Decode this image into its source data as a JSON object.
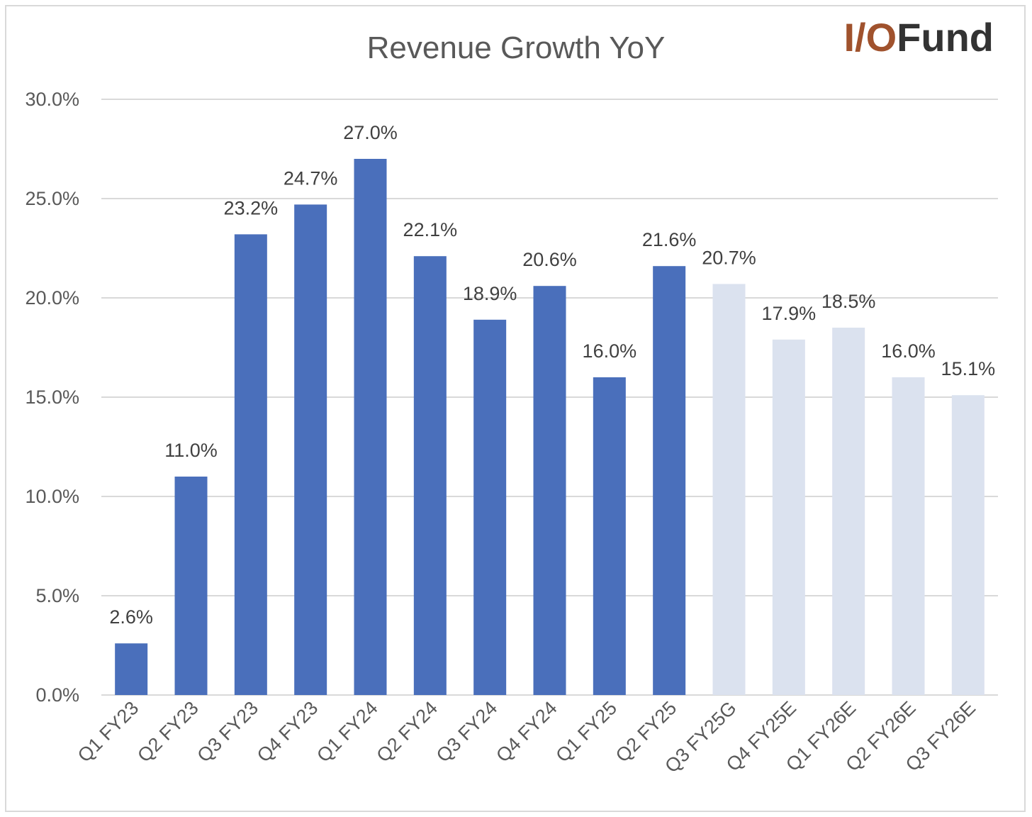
{
  "chart_data": {
    "type": "bar",
    "title": "Revenue Growth YoY",
    "xlabel": "",
    "ylabel": "",
    "ylim": [
      0,
      30
    ],
    "yticks": [
      0,
      5,
      10,
      15,
      20,
      25,
      30
    ],
    "ytick_labels": [
      "0.0%",
      "5.0%",
      "10.0%",
      "15.0%",
      "20.0%",
      "25.0%",
      "30.0%"
    ],
    "grid": true,
    "categories": [
      "Q1 FY23",
      "Q2 FY23",
      "Q3 FY23",
      "Q4 FY23",
      "Q1 FY24",
      "Q2 FY24",
      "Q3 FY24",
      "Q4 FY24",
      "Q1 FY25",
      "Q2 FY25",
      "Q3 FY25G",
      "Q4 FY25E",
      "Q1 FY26E",
      "Q2 FY26E",
      "Q3 FY26E"
    ],
    "values": [
      2.6,
      11.0,
      23.2,
      24.7,
      27.0,
      22.1,
      18.9,
      20.6,
      16.0,
      21.6,
      20.7,
      17.9,
      18.5,
      16.0,
      15.1
    ],
    "value_labels": [
      "2.6%",
      "11.0%",
      "23.2%",
      "24.7%",
      "27.0%",
      "22.1%",
      "18.9%",
      "20.6%",
      "16.0%",
      "21.6%",
      "20.7%",
      "17.9%",
      "18.5%",
      "16.0%",
      "15.1%"
    ],
    "bar_kind": [
      "actual",
      "actual",
      "actual",
      "actual",
      "actual",
      "actual",
      "actual",
      "actual",
      "actual",
      "actual",
      "projected",
      "projected",
      "projected",
      "projected",
      "projected"
    ]
  },
  "logo": {
    "prefix": "I/O",
    "suffix": "Fund"
  },
  "colors": {
    "actual": "#4a6fbb",
    "projected": "#dbe2ef",
    "grid": "#d9d9d9",
    "logo_prefix": "#a0522d",
    "logo_suffix": "#333333"
  }
}
